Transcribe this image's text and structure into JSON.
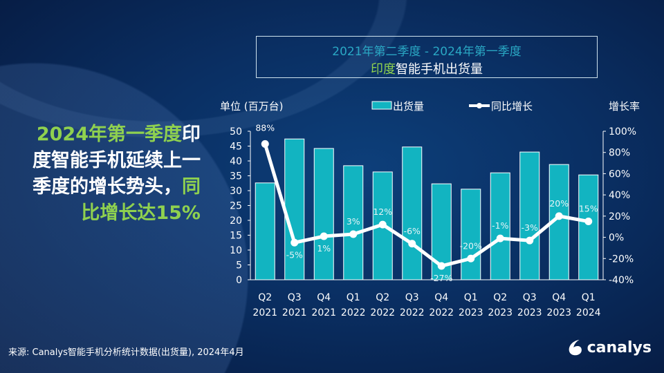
{
  "title": {
    "line1": "2021年第二季度 -  2024年第一季度",
    "line2_green": "印度",
    "line2_white": "智能手机出货量"
  },
  "headline": {
    "part1_green": "2024年第一季度",
    "part2_white": "印度智能手机延续上一季度的增长势头，",
    "part3_green": "同比增长达15%"
  },
  "source": "来源: Canalys智能手机分析统计数据(出货量), 2024年4月",
  "logo": {
    "text": "canalys"
  },
  "colors": {
    "bar": "#12b4c1",
    "line": "#ffffff",
    "accent_green": "#8fd14f",
    "title_cyan": "#2aa8c4",
    "background": "#0a2f63"
  },
  "chart_data": {
    "type": "bar+line",
    "ylabel": "单位 (百万台)",
    "y2label": "增长率",
    "ylim": [
      0,
      50
    ],
    "yticks": [
      0,
      5,
      10,
      15,
      20,
      25,
      30,
      35,
      40,
      45,
      50
    ],
    "y2lim": [
      -40,
      100
    ],
    "y2ticks": [
      "-40%",
      "-20%",
      "0%",
      "20%",
      "40%",
      "60%",
      "80%",
      "100%"
    ],
    "categories": [
      [
        "Q2",
        "2021"
      ],
      [
        "Q3",
        "2021"
      ],
      [
        "Q4",
        "2021"
      ],
      [
        "Q1",
        "2022"
      ],
      [
        "Q2",
        "2022"
      ],
      [
        "Q3",
        "2022"
      ],
      [
        "Q4",
        "2022"
      ],
      [
        "Q1",
        "2023"
      ],
      [
        "Q2",
        "2023"
      ],
      [
        "Q3",
        "2023"
      ],
      [
        "Q4",
        "2023"
      ],
      [
        "Q1",
        "2024"
      ]
    ],
    "legend": "top",
    "series": [
      {
        "name": "出货量",
        "type": "bar",
        "values": [
          32.6,
          47.4,
          44.2,
          38.4,
          36.3,
          44.7,
          32.3,
          30.5,
          36.0,
          43.0,
          38.8,
          35.3
        ]
      },
      {
        "name": "同比增长",
        "type": "line",
        "values": [
          88,
          -5,
          1,
          3,
          12,
          -6,
          -27,
          -20,
          -1,
          -3,
          20,
          15
        ],
        "labels": [
          "88%",
          "-5%",
          "1%",
          "3%",
          "12%",
          "-6%",
          "-27%",
          "-20%",
          "-1%",
          "-3%",
          "20%",
          "15%"
        ]
      }
    ]
  }
}
